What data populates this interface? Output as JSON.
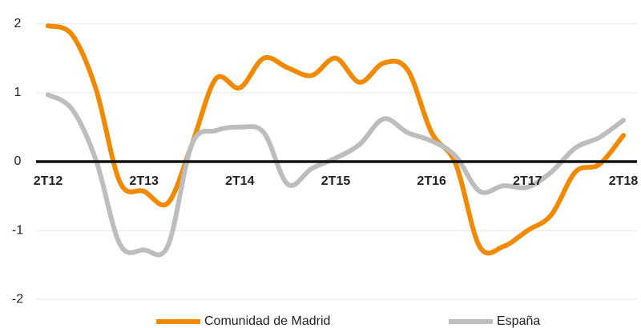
{
  "chart_data": {
    "type": "line",
    "categories": [
      "2T12",
      null,
      null,
      null,
      "2T13",
      null,
      null,
      null,
      "2T14",
      null,
      null,
      null,
      "2T15",
      null,
      null,
      null,
      "2T16",
      null,
      null,
      null,
      "2T17",
      null,
      null,
      null,
      "2T18"
    ],
    "series": [
      {
        "name": "Comunidad de Madrid",
        "color": "#f18a00",
        "values": [
          1.97,
          1.84,
          1.05,
          -0.3,
          -0.43,
          -0.6,
          0.25,
          1.2,
          1.07,
          1.5,
          1.36,
          1.25,
          1.5,
          1.15,
          1.43,
          1.33,
          0.42,
          -0.03,
          -1.23,
          -1.23,
          -1.0,
          -0.77,
          -0.15,
          -0.04,
          0.38
        ]
      },
      {
        "name": "España",
        "color": "#bdbdbd",
        "values": [
          0.97,
          0.76,
          0.02,
          -1.2,
          -1.28,
          -1.22,
          0.25,
          0.45,
          0.5,
          0.42,
          -0.33,
          -0.1,
          0.05,
          0.25,
          0.62,
          0.42,
          0.3,
          0.08,
          -0.43,
          -0.35,
          -0.37,
          -0.15,
          0.2,
          0.35,
          0.6
        ]
      }
    ],
    "ylim": [
      -2.1,
      2.1
    ],
    "yticks": [
      -2,
      -1,
      0,
      1,
      2
    ],
    "grid": true,
    "legend": "bottom"
  }
}
